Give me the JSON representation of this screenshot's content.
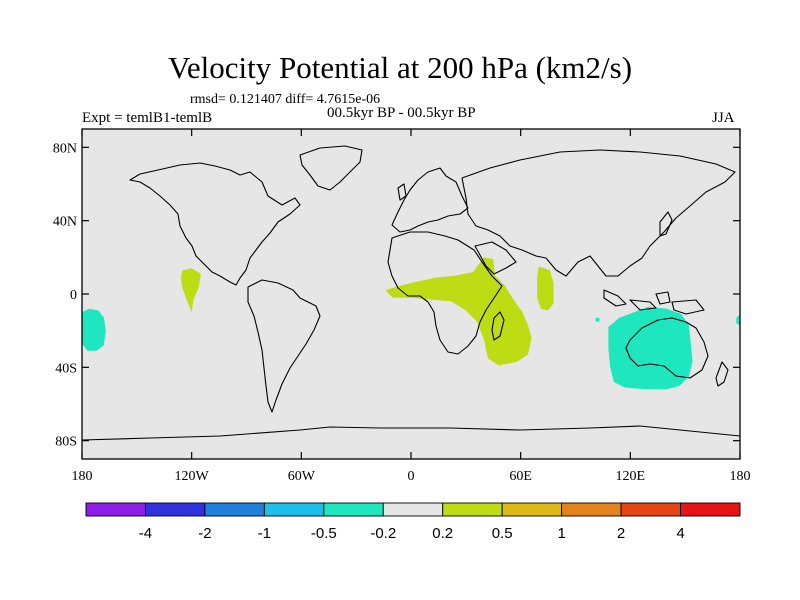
{
  "title": "Velocity Potential at 200 hPa (km2/s)",
  "stats": "rmsd= 0.121407 diff= 4.7615e-06",
  "left_label": "Expt = temlB1-temlB",
  "center_label": "00.5kyr BP - 00.5kyr BP",
  "right_label": "JJA",
  "chart_data": {
    "type": "heatmap",
    "projection": "cylindrical-equidistant",
    "lon_range": [
      -180,
      180
    ],
    "lat_range": [
      -90,
      90
    ],
    "x_ticks": [
      {
        "lon": -180,
        "label": "180"
      },
      {
        "lon": -120,
        "label": "120W"
      },
      {
        "lon": -60,
        "label": "60W"
      },
      {
        "lon": 0,
        "label": "0"
      },
      {
        "lon": 60,
        "label": "60E"
      },
      {
        "lon": 120,
        "label": "120E"
      },
      {
        "lon": 180,
        "label": "180"
      }
    ],
    "y_ticks": [
      {
        "lat": 80,
        "label": "80N"
      },
      {
        "lat": 40,
        "label": "40N"
      },
      {
        "lat": 0,
        "label": "0"
      },
      {
        "lat": -40,
        "label": "40S"
      },
      {
        "lat": -80,
        "label": "80S"
      }
    ],
    "background_color": "#e6e6e6",
    "colorbar": {
      "colors": [
        "#8c1ee6",
        "#3232dc",
        "#1e82dc",
        "#1ebeeb",
        "#1ee6be",
        "#e6e6e6",
        "#bedc14",
        "#dcb914",
        "#e6821e",
        "#e64614",
        "#e61414"
      ],
      "levels": [
        "-4",
        "-2",
        "-1",
        "-0.5",
        "-0.2",
        "0.2",
        "0.5",
        "1",
        "2",
        "4"
      ]
    },
    "regions": [
      {
        "name": "negative-central-pacific",
        "class": "-0.5 to -0.2",
        "color": "#1ee6be",
        "points": [
          [
            -180,
            -10
          ],
          [
            -176,
            -8
          ],
          [
            -171,
            -9
          ],
          [
            -168,
            -13
          ],
          [
            -167,
            -20
          ],
          [
            -168,
            -28
          ],
          [
            -172,
            -31
          ],
          [
            -177,
            -31
          ],
          [
            -180,
            -27
          ]
        ]
      },
      {
        "name": "negative-dateline-east",
        "class": "-0.5 to -0.2",
        "color": "#1ee6be",
        "points": [
          [
            178,
            -13
          ],
          [
            180,
            -11
          ],
          [
            180,
            -17
          ],
          [
            178,
            -16
          ]
        ]
      },
      {
        "name": "negative-australia",
        "class": "-0.5 to -0.2",
        "color": "#1ee6be",
        "points": [
          [
            108,
            -18
          ],
          [
            114,
            -13
          ],
          [
            122,
            -10
          ],
          [
            130,
            -7
          ],
          [
            140,
            -8
          ],
          [
            148,
            -11
          ],
          [
            152,
            -17
          ],
          [
            153,
            -26
          ],
          [
            154,
            -37
          ],
          [
            152,
            -45
          ],
          [
            147,
            -50
          ],
          [
            140,
            -52
          ],
          [
            128,
            -52
          ],
          [
            117,
            -51
          ],
          [
            111,
            -48
          ],
          [
            109,
            -40
          ],
          [
            108,
            -30
          ]
        ]
      },
      {
        "name": "negative-east-indian-ocean",
        "class": "-0.5 to -0.2",
        "color": "#1ee6be",
        "points": [
          [
            101,
            -13
          ],
          [
            103,
            -13
          ],
          [
            103,
            -15
          ],
          [
            101,
            -15
          ]
        ]
      },
      {
        "name": "positive-east-pacific",
        "class": "0.2 to 0.5",
        "color": "#bedc14",
        "points": [
          [
            -125,
            13
          ],
          [
            -120,
            14
          ],
          [
            -115,
            11
          ],
          [
            -116,
            4
          ],
          [
            -119,
            -3
          ],
          [
            -120,
            -10
          ],
          [
            -122,
            -5
          ],
          [
            -125,
            3
          ],
          [
            -126,
            9
          ]
        ]
      },
      {
        "name": "positive-east-africa",
        "class": "0.2 to 0.5",
        "color": "#bedc14",
        "points": [
          [
            -14,
            2
          ],
          [
            -8,
            4
          ],
          [
            0,
            6
          ],
          [
            14,
            9
          ],
          [
            24,
            10
          ],
          [
            34,
            12
          ],
          [
            40,
            20
          ],
          [
            45,
            19
          ],
          [
            46,
            10
          ],
          [
            51,
            5
          ],
          [
            56,
            -3
          ],
          [
            61,
            -10
          ],
          [
            64,
            -17
          ],
          [
            66,
            -24
          ],
          [
            64,
            -33
          ],
          [
            58,
            -37
          ],
          [
            48,
            -39
          ],
          [
            42,
            -35
          ],
          [
            40,
            -25
          ],
          [
            36,
            -15
          ],
          [
            30,
            -9
          ],
          [
            22,
            -4
          ],
          [
            10,
            -3
          ],
          [
            0,
            -2
          ],
          [
            -10,
            -2
          ]
        ]
      },
      {
        "name": "positive-arabian-sea",
        "class": "0.2 to 0.5",
        "color": "#bedc14",
        "points": [
          [
            70,
            15
          ],
          [
            76,
            13
          ],
          [
            78,
            6
          ],
          [
            78,
            -5
          ],
          [
            75,
            -9
          ],
          [
            71,
            -8
          ],
          [
            69,
            -2
          ],
          [
            69,
            9
          ]
        ]
      }
    ]
  }
}
